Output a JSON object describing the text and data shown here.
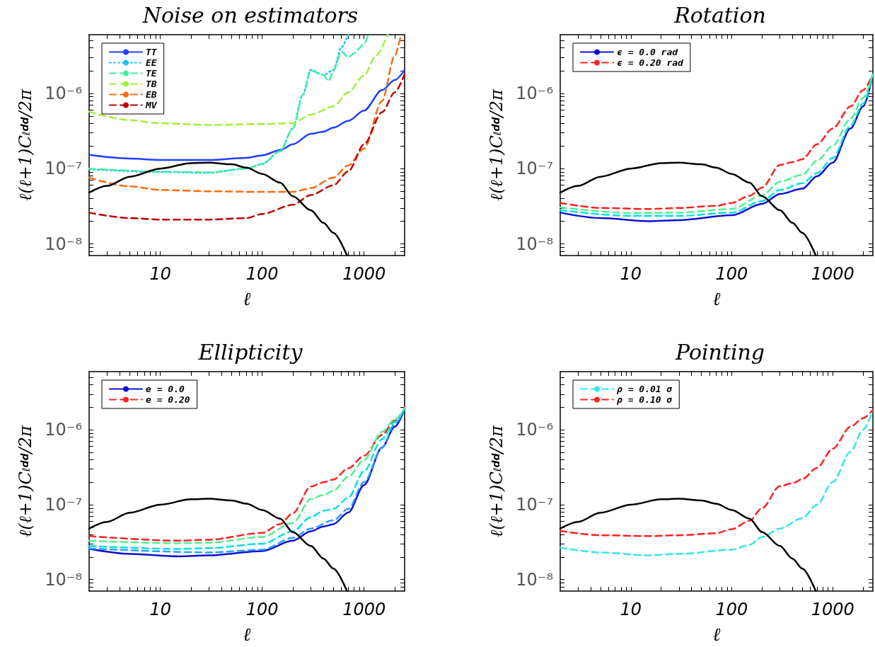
{
  "chart_data": [
    {
      "type": "line",
      "title": "Noise on estimators",
      "xlabel": "ℓ",
      "ylabel": "ℓ(ℓ+1)C$_{ℓ}$$^{dd}$/2π",
      "log": "xy",
      "marker": "none",
      "legend": "top left",
      "xlim": [
        2,
        2500
      ],
      "ylim": [
        7e-09,
        6e-06
      ],
      "xticks": [
        {
          "value": 3,
          "label": null
        },
        {
          "value": 4,
          "label": null
        },
        {
          "value": 5,
          "label": null
        },
        {
          "value": 6,
          "label": null
        },
        {
          "value": 7,
          "label": null
        },
        {
          "value": 8,
          "label": null
        },
        {
          "value": 9,
          "label": null
        },
        10,
        {
          "value": 20,
          "label": null
        },
        {
          "value": 30,
          "label": null
        },
        {
          "value": 40,
          "label": null
        },
        {
          "value": 50,
          "label": null
        },
        {
          "value": 60,
          "label": null
        },
        {
          "value": 70,
          "label": null
        },
        {
          "value": 80,
          "label": null
        },
        {
          "value": 90,
          "label": null
        },
        100,
        {
          "value": 200,
          "label": null
        },
        {
          "value": 300,
          "label": null
        },
        {
          "value": 400,
          "label": null
        },
        {
          "value": 500,
          "label": null
        },
        {
          "value": 600,
          "label": null
        },
        {
          "value": 700,
          "label": null
        },
        {
          "value": 800,
          "label": null
        },
        {
          "value": 900,
          "label": null
        },
        1000,
        {
          "value": 2000,
          "label": null
        }
      ],
      "yticks": [
        {
          "value": 8e-09,
          "label": null
        },
        {
          "value": 9e-09,
          "label": null
        },
        {
          "value": 1e-08,
          "label": "10⁻⁸"
        },
        {
          "value": 2e-08,
          "label": null
        },
        {
          "value": 3e-08,
          "label": null
        },
        {
          "value": 4e-08,
          "label": null
        },
        {
          "value": 5e-08,
          "label": null
        },
        {
          "value": 6e-08,
          "label": null
        },
        {
          "value": 7e-08,
          "label": null
        },
        {
          "value": 8e-08,
          "label": null
        },
        {
          "value": 9e-08,
          "label": null
        },
        {
          "value": 1e-07,
          "label": "10⁻⁷"
        },
        {
          "value": 2e-07,
          "label": null
        },
        {
          "value": 3e-07,
          "label": null
        },
        {
          "value": 4e-07,
          "label": null
        },
        {
          "value": 5e-07,
          "label": null
        },
        {
          "value": 6e-07,
          "label": null
        },
        {
          "value": 7e-07,
          "label": null
        },
        {
          "value": 8e-07,
          "label": null
        },
        {
          "value": 9e-07,
          "label": null
        },
        {
          "value": 1e-06,
          "label": "10⁻⁶"
        },
        {
          "value": 2e-06,
          "label": null
        },
        {
          "value": 3e-06,
          "label": null
        },
        {
          "value": 4e-06,
          "label": null
        },
        {
          "value": 5e-06,
          "label": null
        }
      ],
      "series": [
        {
          "name": "TT",
          "color": "#1f3fff",
          "line_style": "solid",
          "x": [
            2,
            5,
            10,
            30,
            70,
            100,
            150,
            200,
            300,
            400,
            500,
            700,
            1000,
            1500,
            2000,
            2500
          ],
          "values": [
            1.52e-07,
            1.36e-07,
            1.3e-07,
            1.3e-07,
            1.39e-07,
            1.5e-07,
            1.76e-07,
            2.1e-07,
            2.9e-07,
            3.1e-07,
            3.5e-07,
            4.3e-07,
            5.9e-07,
            1.1e-06,
            1.5e-06,
            2.05e-06
          ]
        },
        {
          "name": "EE",
          "color": "#20c0ff",
          "line_style": "dotted",
          "x": [
            2,
            10,
            30,
            70,
            100,
            150,
            200,
            250,
            300,
            400,
            500,
            600,
            700
          ],
          "values": [
            9.8e-08,
            9e-08,
            8.8e-08,
            1e-07,
            1.15e-07,
            1.7e-07,
            3.4e-07,
            9.5e-07,
            2.05e-06,
            1.75e-06,
            2.05e-06,
            4.1e-06,
            6e-06
          ]
        },
        {
          "name": "TE",
          "color": "#40f0a0",
          "line_style": "dashed",
          "x": [
            2,
            10,
            30,
            70,
            100,
            150,
            200,
            250,
            300,
            400,
            450,
            500,
            600,
            700,
            800,
            1000,
            1100
          ],
          "values": [
            1e-07,
            9.1e-08,
            8.9e-08,
            1e-07,
            1.15e-07,
            1.7e-07,
            3.4e-07,
            9.5e-07,
            2e-06,
            1.75e-06,
            1.45e-06,
            2e-06,
            3.6e-06,
            3e-06,
            3.4e-06,
            4.5e-06,
            6e-06
          ]
        },
        {
          "name": "TB",
          "color": "#a0f040",
          "line_style": "dashed",
          "x": [
            2,
            5,
            10,
            30,
            100,
            200,
            300,
            500,
            700,
            1000,
            1300,
            1700
          ],
          "values": [
            5.7e-07,
            4.4e-07,
            4e-07,
            3.8e-07,
            3.9e-07,
            4e-07,
            5.2e-07,
            6.7e-07,
            1.03e-06,
            1.73e-06,
            3.1e-06,
            6e-06
          ]
        },
        {
          "name": "EB",
          "color": "#ff6a10",
          "line_style": "dashed",
          "x": [
            2,
            5,
            10,
            30,
            100,
            200,
            300,
            500,
            700,
            1000,
            1500,
            2000,
            2300
          ],
          "values": [
            7.6e-08,
            5.8e-08,
            5.2e-08,
            5e-08,
            4.9e-08,
            4.9e-08,
            5.5e-08,
            7.6e-08,
            1.1e-07,
            1.84e-07,
            7.9e-07,
            3.15e-06,
            6e-06
          ]
        },
        {
          "name": "MV",
          "color": "#c00000",
          "line_style": "dashed",
          "x": [
            2,
            5,
            10,
            30,
            70,
            100,
            200,
            300,
            500,
            700,
            1000,
            1500,
            2000,
            2500
          ],
          "values": [
            2.6e-08,
            2.2e-08,
            2.1e-08,
            2.1e-08,
            2.2e-08,
            2.5e-08,
            3.3e-08,
            4.45e-08,
            6e-08,
            9.2e-08,
            2.1e-07,
            5.6e-07,
            1.03e-06,
            1.8e-06
          ]
        },
        {
          "color": "#000000",
          "line_style": "solid",
          "x": [
            2,
            3,
            5,
            10,
            20,
            30,
            50,
            70,
            100,
            150,
            200,
            300,
            400,
            500,
            680
          ],
          "values": [
            4.8e-08,
            5.9e-08,
            7.8e-08,
            1e-07,
            1.18e-07,
            1.2e-07,
            1.14e-07,
            1.03e-07,
            8.5e-08,
            6.5e-08,
            4.3e-08,
            2.8e-08,
            1.9e-08,
            1.4e-08,
            7e-09
          ]
        }
      ]
    },
    {
      "type": "line",
      "title": "Rotation",
      "xlabel": "ℓ",
      "ylabel": "ℓ(ℓ+1)C$_{ℓ}$$^{dd}$/2π",
      "log": "xy",
      "marker": "none",
      "legend": "top left",
      "xlim": [
        2,
        2500
      ],
      "ylim": [
        7e-09,
        6e-06
      ],
      "xticks": [
        {
          "value": 3,
          "label": null
        },
        {
          "value": 4,
          "label": null
        },
        {
          "value": 5,
          "label": null
        },
        {
          "value": 6,
          "label": null
        },
        {
          "value": 7,
          "label": null
        },
        {
          "value": 8,
          "label": null
        },
        {
          "value": 9,
          "label": null
        },
        10,
        {
          "value": 20,
          "label": null
        },
        {
          "value": 30,
          "label": null
        },
        {
          "value": 40,
          "label": null
        },
        {
          "value": 50,
          "label": null
        },
        {
          "value": 60,
          "label": null
        },
        {
          "value": 70,
          "label": null
        },
        {
          "value": 80,
          "label": null
        },
        {
          "value": 90,
          "label": null
        },
        100,
        {
          "value": 200,
          "label": null
        },
        {
          "value": 300,
          "label": null
        },
        {
          "value": 400,
          "label": null
        },
        {
          "value": 500,
          "label": null
        },
        {
          "value": 600,
          "label": null
        },
        {
          "value": 700,
          "label": null
        },
        {
          "value": 800,
          "label": null
        },
        {
          "value": 900,
          "label": null
        },
        1000,
        {
          "value": 2000,
          "label": null
        }
      ],
      "yticks": [
        {
          "value": 8e-09,
          "label": null
        },
        {
          "value": 9e-09,
          "label": null
        },
        {
          "value": 1e-08,
          "label": "10⁻⁸"
        },
        {
          "value": 2e-08,
          "label": null
        },
        {
          "value": 3e-08,
          "label": null
        },
        {
          "value": 4e-08,
          "label": null
        },
        {
          "value": 5e-08,
          "label": null
        },
        {
          "value": 6e-08,
          "label": null
        },
        {
          "value": 7e-08,
          "label": null
        },
        {
          "value": 8e-08,
          "label": null
        },
        {
          "value": 9e-08,
          "label": null
        },
        {
          "value": 1e-07,
          "label": "10⁻⁷"
        },
        {
          "value": 2e-07,
          "label": null
        },
        {
          "value": 3e-07,
          "label": null
        },
        {
          "value": 4e-07,
          "label": null
        },
        {
          "value": 5e-07,
          "label": null
        },
        {
          "value": 6e-07,
          "label": null
        },
        {
          "value": 7e-07,
          "label": null
        },
        {
          "value": 8e-07,
          "label": null
        },
        {
          "value": 9e-07,
          "label": null
        },
        {
          "value": 1e-06,
          "label": "10⁻⁶"
        },
        {
          "value": 2e-06,
          "label": null
        },
        {
          "value": 3e-06,
          "label": null
        },
        {
          "value": 4e-06,
          "label": null
        },
        {
          "value": 5e-06,
          "label": null
        }
      ],
      "series": [
        {
          "name": "ϵ = 0.0 rad",
          "color": "#1010d0",
          "line_style": "solid",
          "x": [
            2,
            5,
            15,
            30,
            100,
            200,
            300,
            500,
            700,
            1000,
            1500,
            2000,
            2500
          ],
          "values": [
            2.6e-08,
            2.2e-08,
            2e-08,
            2.07e-08,
            2.4e-08,
            3.4e-08,
            4.6e-08,
            5.4e-08,
            7.9e-08,
            1.2e-07,
            3.4e-07,
            6.7e-07,
            1.8e-06
          ]
        },
        {
          "name": "ϵ = 0.20 rad",
          "color": "#ff2020",
          "line_style": "dashed",
          "x": [
            2,
            5,
            15,
            30,
            70,
            100,
            150,
            200,
            300,
            400,
            500,
            700,
            1000,
            1500,
            2000,
            2500
          ],
          "values": [
            3.5e-08,
            3e-08,
            2.9e-08,
            3e-08,
            3.2e-08,
            3.5e-08,
            4.35e-08,
            5.6e-08,
            1.12e-07,
            1.22e-07,
            1.33e-07,
            2.1e-07,
            3.4e-07,
            6.7e-07,
            1.1e-06,
            1.8e-06
          ]
        },
        {
          "color": "#00e0e0",
          "line_style": "dashed",
          "x": [
            2,
            10,
            30,
            100,
            200,
            300,
            500,
            700,
            1000,
            1500,
            2000,
            2500
          ],
          "values": [
            2.8e-08,
            2.35e-08,
            2.35e-08,
            2.6e-08,
            3.7e-08,
            5.2e-08,
            6.4e-08,
            8.7e-08,
            1.38e-07,
            3.7e-07,
            7.3e-07,
            1.8e-06
          ]
        },
        {
          "color": "#50f090",
          "line_style": "dashed",
          "x": [
            2,
            10,
            30,
            100,
            200,
            300,
            500,
            700,
            1000,
            1500,
            2000,
            2500
          ],
          "values": [
            3.05e-08,
            2.57e-08,
            2.6e-08,
            2.9e-08,
            4.4e-08,
            6.7e-08,
            8.3e-08,
            1.27e-07,
            2e-07,
            4.6e-07,
            8.7e-07,
            1.8e-06
          ]
        },
        {
          "color": "#000000",
          "line_style": "solid",
          "x": [
            2,
            3,
            5,
            10,
            20,
            30,
            50,
            70,
            100,
            150,
            200,
            300,
            400,
            500,
            680
          ],
          "values": [
            4.8e-08,
            5.9e-08,
            7.8e-08,
            1e-07,
            1.18e-07,
            1.2e-07,
            1.14e-07,
            1.03e-07,
            8.5e-08,
            6.5e-08,
            4.3e-08,
            2.8e-08,
            1.9e-08,
            1.4e-08,
            7e-09
          ]
        }
      ]
    },
    {
      "type": "line",
      "title": "Ellipticity",
      "xlabel": "ℓ",
      "ylabel": "ℓ(ℓ+1)C$_{ℓ}$$^{dd}$/2π",
      "log": "xy",
      "marker": "none",
      "legend": "top left",
      "xlim": [
        2,
        2500
      ],
      "ylim": [
        7e-09,
        6e-06
      ],
      "xticks": [
        {
          "value": 3,
          "label": null
        },
        {
          "value": 4,
          "label": null
        },
        {
          "value": 5,
          "label": null
        },
        {
          "value": 6,
          "label": null
        },
        {
          "value": 7,
          "label": null
        },
        {
          "value": 8,
          "label": null
        },
        {
          "value": 9,
          "label": null
        },
        10,
        {
          "value": 20,
          "label": null
        },
        {
          "value": 30,
          "label": null
        },
        {
          "value": 40,
          "label": null
        },
        {
          "value": 50,
          "label": null
        },
        {
          "value": 60,
          "label": null
        },
        {
          "value": 70,
          "label": null
        },
        {
          "value": 80,
          "label": null
        },
        {
          "value": 90,
          "label": null
        },
        100,
        {
          "value": 200,
          "label": null
        },
        {
          "value": 300,
          "label": null
        },
        {
          "value": 400,
          "label": null
        },
        {
          "value": 500,
          "label": null
        },
        {
          "value": 600,
          "label": null
        },
        {
          "value": 700,
          "label": null
        },
        {
          "value": 800,
          "label": null
        },
        {
          "value": 900,
          "label": null
        },
        1000,
        {
          "value": 2000,
          "label": null
        }
      ],
      "yticks": [
        {
          "value": 8e-09,
          "label": null
        },
        {
          "value": 9e-09,
          "label": null
        },
        {
          "value": 1e-08,
          "label": "10⁻⁸"
        },
        {
          "value": 2e-08,
          "label": null
        },
        {
          "value": 3e-08,
          "label": null
        },
        {
          "value": 4e-08,
          "label": null
        },
        {
          "value": 5e-08,
          "label": null
        },
        {
          "value": 6e-08,
          "label": null
        },
        {
          "value": 7e-08,
          "label": null
        },
        {
          "value": 8e-08,
          "label": null
        },
        {
          "value": 9e-08,
          "label": null
        },
        {
          "value": 1e-07,
          "label": "10⁻⁷"
        },
        {
          "value": 2e-07,
          "label": null
        },
        {
          "value": 3e-07,
          "label": null
        },
        {
          "value": 4e-07,
          "label": null
        },
        {
          "value": 5e-07,
          "label": null
        },
        {
          "value": 6e-07,
          "label": null
        },
        {
          "value": 7e-07,
          "label": null
        },
        {
          "value": 8e-07,
          "label": null
        },
        {
          "value": 9e-07,
          "label": null
        },
        {
          "value": 1e-06,
          "label": "10⁻⁶"
        },
        {
          "value": 2e-06,
          "label": null
        },
        {
          "value": 3e-06,
          "label": null
        },
        {
          "value": 4e-06,
          "label": null
        },
        {
          "value": 5e-06,
          "label": null
        }
      ],
      "series": [
        {
          "name": "e = 0.0",
          "color": "#1010d0",
          "line_style": "solid",
          "x": [
            2,
            5,
            15,
            30,
            100,
            200,
            300,
            400,
            500,
            700,
            1000,
            1500,
            2000,
            2500
          ],
          "values": [
            2.57e-08,
            2.2e-08,
            2.04e-08,
            2.1e-08,
            2.4e-08,
            3.3e-08,
            4.4e-08,
            5.1e-08,
            5.5e-08,
            7.85e-08,
            1.83e-07,
            5.8e-07,
            1.1e-06,
            1.9e-06
          ]
        },
        {
          "name": "e = 0.20",
          "color": "#ff2020",
          "line_style": "dashed",
          "x": [
            2,
            15,
            30,
            100,
            150,
            200,
            300,
            400,
            500,
            700,
            1000,
            1500,
            2000,
            2200,
            2500
          ],
          "values": [
            3.8e-08,
            3.3e-08,
            3.4e-08,
            4.2e-08,
            5.5e-08,
            7.7e-08,
            1.75e-07,
            1.99e-07,
            2.17e-07,
            3.06e-07,
            4.5e-07,
            8.6e-07,
            1.33e-06,
            1.44e-06,
            2.05e-06
          ]
        },
        {
          "color": "#2aa0ff",
          "line_style": "dashed",
          "x": [
            2,
            30,
            100,
            200,
            300,
            500,
            700,
            1000,
            1500,
            2000,
            2500
          ],
          "values": [
            2.6e-08,
            2.3e-08,
            2.5e-08,
            3.6e-08,
            4.8e-08,
            6.2e-08,
            8.8e-08,
            2e-07,
            5.8e-07,
            1.2e-06,
            1.9e-06
          ]
        },
        {
          "color": "#00e0e0",
          "line_style": "dashed",
          "x": [
            2,
            15,
            30,
            100,
            200,
            300,
            400,
            500,
            700,
            1000,
            1500,
            2000,
            2500
          ],
          "values": [
            2.8e-08,
            2.56e-08,
            2.63e-08,
            3e-08,
            4.4e-08,
            6.8e-08,
            8.3e-08,
            8.8e-08,
            1.24e-07,
            2.8e-07,
            7.5e-07,
            1.27e-06,
            1.9e-06
          ]
        },
        {
          "color": "#50f090",
          "line_style": "dashed",
          "x": [
            2,
            15,
            30,
            100,
            200,
            300,
            400,
            500,
            700,
            1000,
            1500,
            2000,
            2500
          ],
          "values": [
            3.3e-08,
            3.05e-08,
            3.1e-08,
            3.7e-08,
            5.7e-08,
            1.19e-07,
            1.35e-07,
            1.54e-07,
            2.36e-07,
            3.96e-07,
            9.4e-07,
            1.38e-06,
            1.95e-06
          ]
        },
        {
          "color": "#000000",
          "line_style": "solid",
          "x": [
            2,
            3,
            5,
            10,
            20,
            30,
            50,
            70,
            100,
            150,
            200,
            300,
            400,
            500,
            680
          ],
          "values": [
            4.8e-08,
            5.9e-08,
            7.8e-08,
            1e-07,
            1.18e-07,
            1.2e-07,
            1.14e-07,
            1.03e-07,
            8.5e-08,
            6.5e-08,
            4.3e-08,
            2.8e-08,
            1.9e-08,
            1.4e-08,
            7e-09
          ]
        }
      ]
    },
    {
      "type": "line",
      "title": "Pointing",
      "xlabel": "ℓ",
      "ylabel": "ℓ(ℓ+1)C$_{ℓ}$$^{dd}$/2π",
      "log": "xy",
      "marker": "none",
      "legend": "top left",
      "xlim": [
        2,
        2500
      ],
      "ylim": [
        7e-09,
        6e-06
      ],
      "xticks": [
        {
          "value": 3,
          "label": null
        },
        {
          "value": 4,
          "label": null
        },
        {
          "value": 5,
          "label": null
        },
        {
          "value": 6,
          "label": null
        },
        {
          "value": 7,
          "label": null
        },
        {
          "value": 8,
          "label": null
        },
        {
          "value": 9,
          "label": null
        },
        10,
        {
          "value": 20,
          "label": null
        },
        {
          "value": 30,
          "label": null
        },
        {
          "value": 40,
          "label": null
        },
        {
          "value": 50,
          "label": null
        },
        {
          "value": 60,
          "label": null
        },
        {
          "value": 70,
          "label": null
        },
        {
          "value": 80,
          "label": null
        },
        {
          "value": 90,
          "label": null
        },
        100,
        {
          "value": 200,
          "label": null
        },
        {
          "value": 300,
          "label": null
        },
        {
          "value": 400,
          "label": null
        },
        {
          "value": 500,
          "label": null
        },
        {
          "value": 600,
          "label": null
        },
        {
          "value": 700,
          "label": null
        },
        {
          "value": 800,
          "label": null
        },
        {
          "value": 900,
          "label": null
        },
        1000,
        {
          "value": 2000,
          "label": null
        }
      ],
      "yticks": [
        {
          "value": 8e-09,
          "label": null
        },
        {
          "value": 9e-09,
          "label": null
        },
        {
          "value": 1e-08,
          "label": "10⁻⁸"
        },
        {
          "value": 2e-08,
          "label": null
        },
        {
          "value": 3e-08,
          "label": null
        },
        {
          "value": 4e-08,
          "label": null
        },
        {
          "value": 5e-08,
          "label": null
        },
        {
          "value": 6e-08,
          "label": null
        },
        {
          "value": 7e-08,
          "label": null
        },
        {
          "value": 8e-08,
          "label": null
        },
        {
          "value": 9e-08,
          "label": null
        },
        {
          "value": 1e-07,
          "label": "10⁻⁷"
        },
        {
          "value": 2e-07,
          "label": null
        },
        {
          "value": 3e-07,
          "label": null
        },
        {
          "value": 4e-07,
          "label": null
        },
        {
          "value": 5e-07,
          "label": null
        },
        {
          "value": 6e-07,
          "label": null
        },
        {
          "value": 7e-07,
          "label": null
        },
        {
          "value": 8e-07,
          "label": null
        },
        {
          "value": 9e-07,
          "label": null
        },
        {
          "value": 1e-06,
          "label": "10⁻⁶"
        },
        {
          "value": 2e-06,
          "label": null
        },
        {
          "value": 3e-06,
          "label": null
        },
        {
          "value": 4e-06,
          "label": null
        },
        {
          "value": 5e-06,
          "label": null
        }
      ],
      "series": [
        {
          "name": "ρ = 0.01 σ",
          "color": "#30e8e8",
          "line_style": "dashed",
          "x": [
            2,
            5,
            15,
            30,
            100,
            150,
            200,
            300,
            500,
            700,
            1000,
            1500,
            2000,
            2500
          ],
          "values": [
            2.67e-08,
            2.3e-08,
            2.1e-08,
            2.2e-08,
            2.5e-08,
            2.9e-08,
            3.7e-08,
            4.8e-08,
            6.6e-08,
            1e-07,
            2e-07,
            5.1e-07,
            1e-06,
            1.85e-06
          ]
        },
        {
          "name": "ρ = 0.10 σ",
          "color": "#ff2020",
          "line_style": "dashed",
          "x": [
            2,
            5,
            15,
            30,
            70,
            100,
            150,
            200,
            300,
            400,
            500,
            700,
            1000,
            1500,
            2000,
            2500
          ],
          "values": [
            4.45e-08,
            3.9e-08,
            3.8e-08,
            3.9e-08,
            4.15e-08,
            4.7e-08,
            6.1e-08,
            9e-08,
            1.77e-07,
            1.93e-07,
            2.2e-07,
            3.1e-07,
            5.6e-07,
            1.1e-06,
            1.43e-06,
            1.85e-06
          ]
        },
        {
          "color": "#000000",
          "line_style": "solid",
          "x": [
            2,
            3,
            5,
            10,
            20,
            30,
            50,
            70,
            100,
            150,
            200,
            300,
            400,
            500,
            680
          ],
          "values": [
            4.8e-08,
            5.9e-08,
            7.8e-08,
            1e-07,
            1.18e-07,
            1.2e-07,
            1.14e-07,
            1.03e-07,
            8.5e-08,
            6.5e-08,
            4.3e-08,
            2.8e-08,
            1.9e-08,
            1.4e-08,
            7e-09
          ]
        }
      ]
    }
  ]
}
